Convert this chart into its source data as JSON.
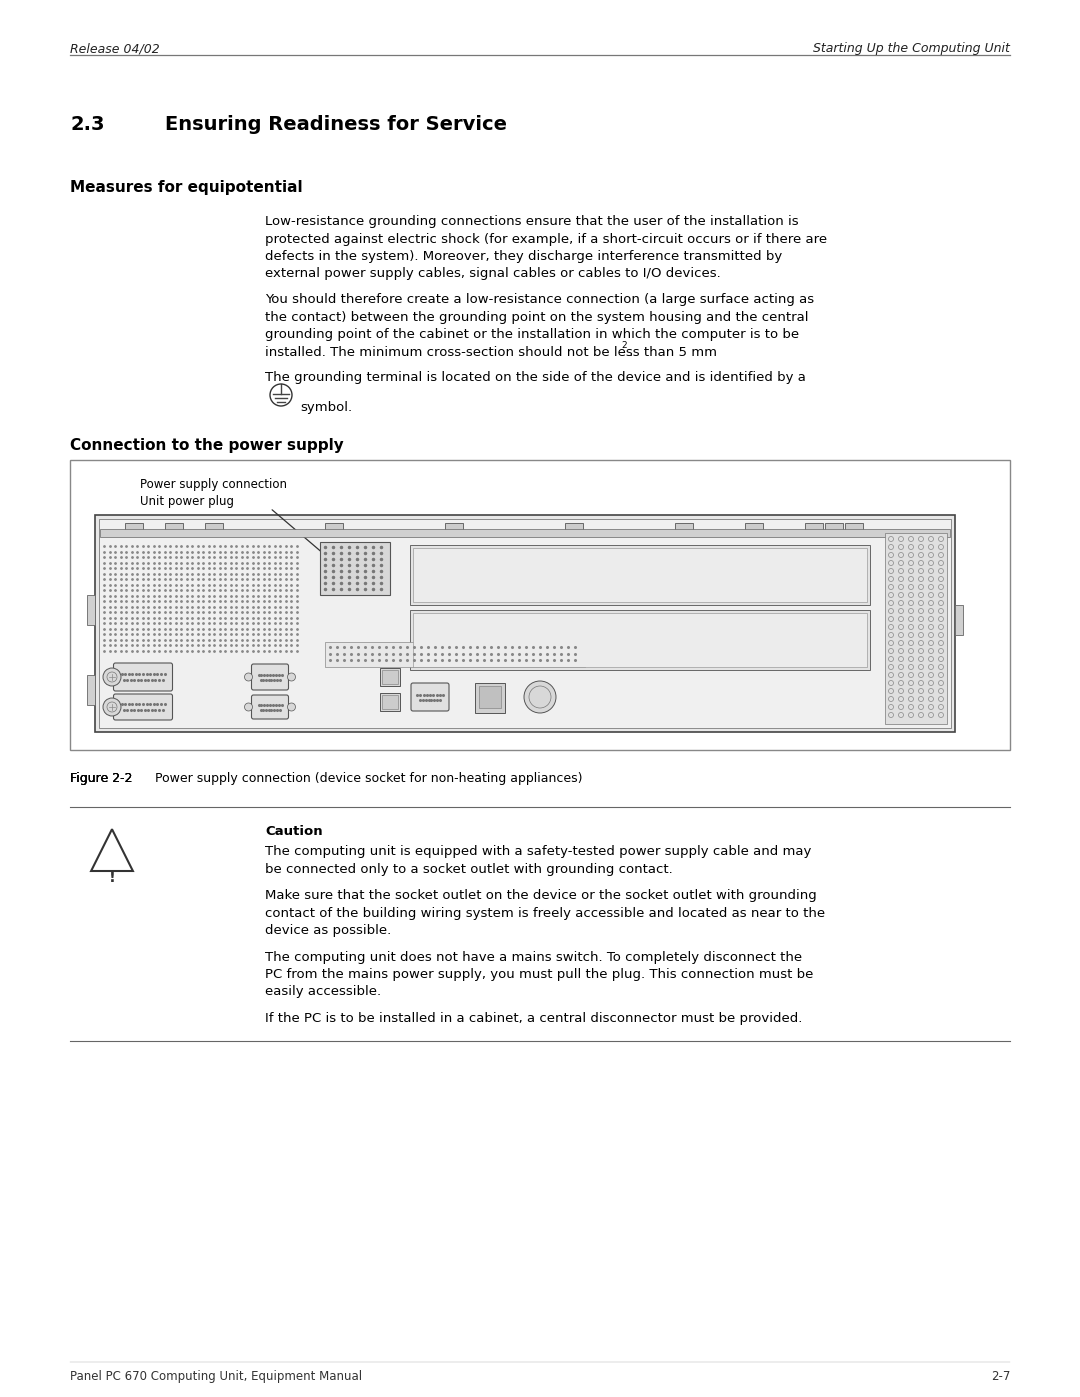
{
  "background_color": "#ffffff",
  "header_left": "Release 04/02",
  "header_right": "Starting Up the Computing Unit",
  "section_number": "2.3",
  "section_title": "Ensuring Readiness for Service",
  "subsection1_title": "Measures for equipotential",
  "para1_lines": [
    "Low-resistance grounding connections ensure that the user of the installation is",
    "protected against electric shock (for example, if a short-circuit occurs or if there are",
    "defects in the system). Moreover, they discharge interference transmitted by",
    "external power supply cables, signal cables or cables to I/O devices."
  ],
  "para2_lines": [
    "You should therefore create a low-resistance connection (a large surface acting as",
    "the contact) between the grounding point on the system housing and the central",
    "grounding point of the cabinet or the installation in which the computer is to be",
    "installed. The minimum cross-section should not be less than 5 mm²."
  ],
  "para3_before": "The grounding terminal is located on the side of the device and is identified by a",
  "para3_after": "symbol.",
  "subsection2_title": "Connection to the power supply",
  "fig_label1": "Power supply connection",
  "fig_label2": "Unit power plug",
  "fig_caption_bold": "Figure 2-2",
  "fig_caption_rest": "     Power supply connection (device socket for non-heating appliances)",
  "caution_title": "Caution",
  "caution_para1_lines": [
    "The computing unit is equipped with a safety-tested power supply cable and may",
    "be connected only to a socket outlet with grounding contact."
  ],
  "caution_para2_lines": [
    "Make sure that the socket outlet on the device or the socket outlet with grounding",
    "contact of the building wiring system is freely accessible and located as near to the",
    "device as possible."
  ],
  "caution_para3_lines": [
    "The computing unit does not have a mains switch. To completely disconnect the",
    "PC from the mains power supply, you must pull the plug. This connection must be",
    "easily accessible."
  ],
  "caution_para4_lines": [
    "If the PC is to be installed in a cabinet, a central disconnector must be provided."
  ],
  "footer_left": "Panel PC 670 Computing Unit, Equipment Manual",
  "footer_right": "2-7"
}
